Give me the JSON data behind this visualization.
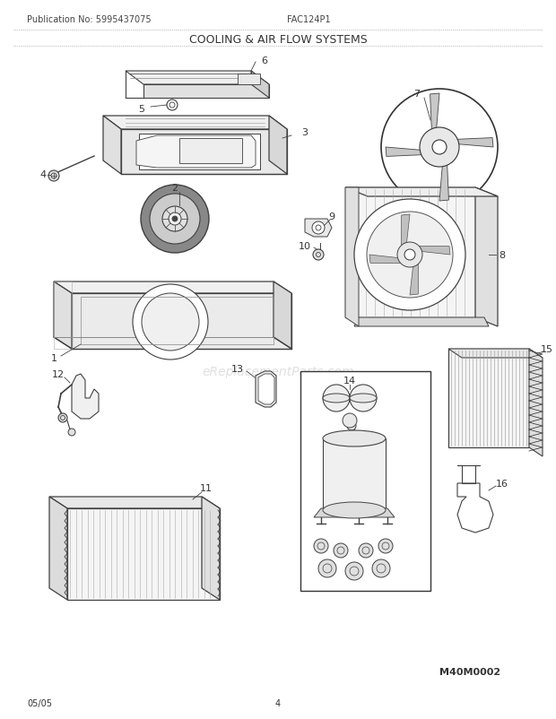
{
  "title": "COOLING & AIR FLOW SYSTEMS",
  "pub_no": "Publication No: 5995437075",
  "model": "FAC124P1",
  "date": "05/05",
  "page": "4",
  "diagram_id": "M40M0002",
  "watermark": "eReplacementParts.com",
  "bg_color": "#ffffff",
  "lc": "#404040",
  "tc": "#333333",
  "gray1": "#888888",
  "gray2": "#aaaaaa",
  "gray3": "#cccccc"
}
